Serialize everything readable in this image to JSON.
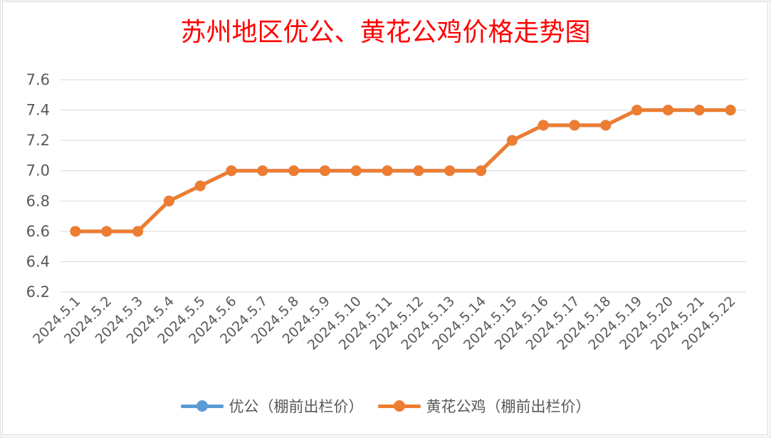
{
  "chart_data": {
    "type": "line",
    "title": "苏州地区优公、黄花公鸡价格走势图",
    "categories": [
      "2024.5.1",
      "2024.5.2",
      "2024.5.3",
      "2024.5.4",
      "2024.5.5",
      "2024.5.6",
      "2024.5.7",
      "2024.5.8",
      "2024.5.9",
      "2024.5.10",
      "2024.5.11",
      "2024.5.12",
      "2024.5.13",
      "2024.5.14",
      "2024.5.15",
      "2024.5.16",
      "2024.5.17",
      "2024.5.18",
      "2024.5.19",
      "2024.5.20",
      "2024.5.21",
      "2024.5.22"
    ],
    "series": [
      {
        "name": "优公（棚前出栏价）",
        "color": "#5b9bd5",
        "values": [
          6.6,
          6.6,
          6.6,
          6.8,
          6.9,
          7.0,
          7.0,
          7.0,
          7.0,
          7.0,
          7.0,
          7.0,
          7.0,
          7.0,
          7.2,
          7.3,
          7.3,
          7.3,
          7.4,
          7.4,
          7.4,
          7.4
        ]
      },
      {
        "name": "黄花公鸡（棚前出栏价）",
        "color": "#ed7d31",
        "values": [
          6.6,
          6.6,
          6.6,
          6.8,
          6.9,
          7.0,
          7.0,
          7.0,
          7.0,
          7.0,
          7.0,
          7.0,
          7.0,
          7.0,
          7.2,
          7.3,
          7.3,
          7.3,
          7.4,
          7.4,
          7.4,
          7.4
        ]
      }
    ],
    "yticks": [
      "6.2",
      "6.4",
      "6.6",
      "6.8",
      "7.0",
      "7.2",
      "7.4",
      "7.6"
    ],
    "ylim": [
      6.2,
      7.6
    ],
    "xlabel": "",
    "ylabel": "",
    "grid": true,
    "legend": "bottom"
  }
}
